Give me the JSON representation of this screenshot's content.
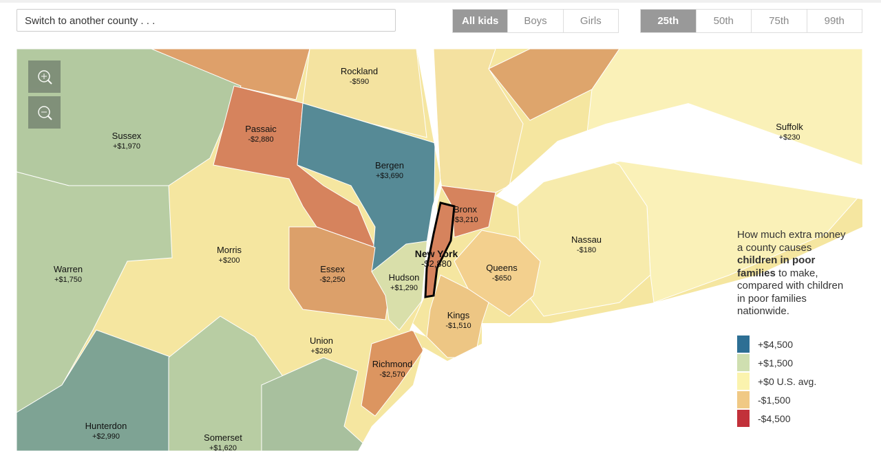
{
  "search": {
    "placeholder": "Switch to another county . . ."
  },
  "group_toggle": {
    "options": [
      "All kids",
      "Boys",
      "Girls"
    ],
    "selected": 0
  },
  "percentile_toggle": {
    "options": [
      "25th",
      "50th",
      "75th",
      "99th"
    ],
    "selected": 0
  },
  "counties": [
    {
      "name": "Rockland",
      "value": "-$590"
    },
    {
      "name": "Sussex",
      "value": "+$1,970"
    },
    {
      "name": "Passaic",
      "value": "-$2,880"
    },
    {
      "name": "Bergen",
      "value": "+$3,690"
    },
    {
      "name": "Suffolk",
      "value": "+$230"
    },
    {
      "name": "Bronx",
      "value": "-$3,210"
    },
    {
      "name": "Nassau",
      "value": "-$180"
    },
    {
      "name": "Morris",
      "value": "+$200"
    },
    {
      "name": "New York",
      "value": "-$2,880"
    },
    {
      "name": "Warren",
      "value": "+$1,750"
    },
    {
      "name": "Essex",
      "value": "-$2,250"
    },
    {
      "name": "Queens",
      "value": "-$650"
    },
    {
      "name": "Hudson",
      "value": "+$1,290"
    },
    {
      "name": "Kings",
      "value": "-$1,510"
    },
    {
      "name": "Union",
      "value": "+$280"
    },
    {
      "name": "Richmond",
      "value": "-$2,570"
    },
    {
      "name": "Hunterdon",
      "value": "+$2,990"
    },
    {
      "name": "Somerset",
      "value": "+$1,620"
    }
  ],
  "legend": {
    "description": [
      "How much extra money a county causes ",
      "children in poor families",
      " to make, compared with children in poor families nationwide."
    ],
    "items": [
      {
        "label": "+$4,500",
        "color": "#2d6f94"
      },
      {
        "label": "+$1,500",
        "color": "#cfdfb0"
      },
      {
        "label": "+$0 U.S. avg.",
        "color": "#fbf3ae"
      },
      {
        "label": "-$1,500",
        "color": "#f0c985"
      },
      {
        "label": "-$4,500",
        "color": "#c2313a"
      }
    ]
  }
}
